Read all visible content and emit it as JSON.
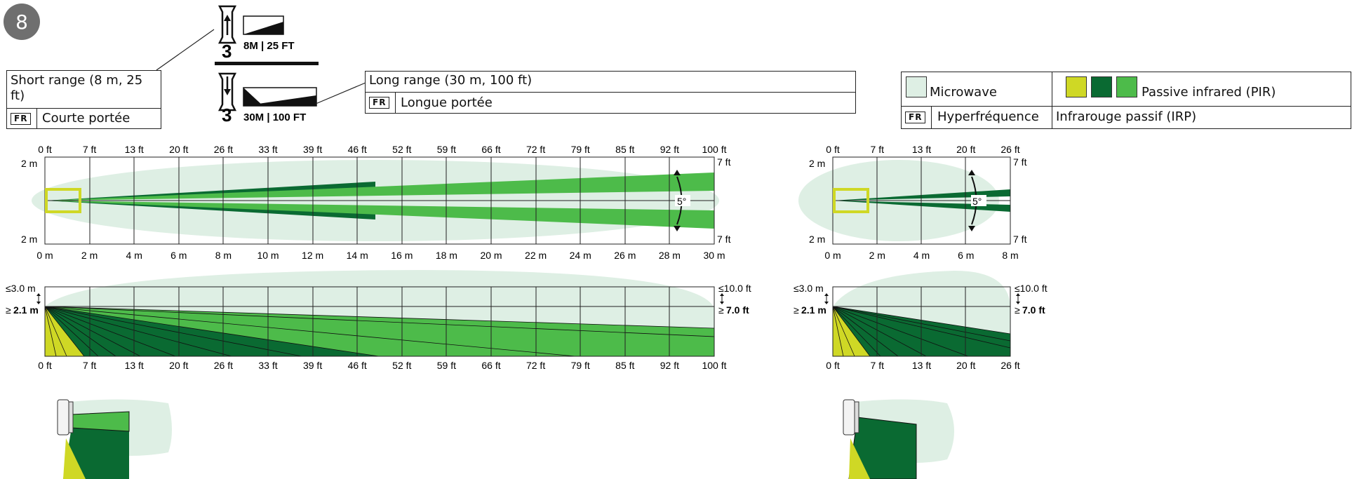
{
  "step_number": "8",
  "mode_short": {
    "step": "3",
    "distance": "8M | 25 FT"
  },
  "mode_long": {
    "step": "3",
    "distance": "30M | 100 FT"
  },
  "short_range_box": {
    "label": "Short range (8 m, 25 ft)",
    "fr_tag": "FR",
    "fr_text": "Courte portée"
  },
  "long_range_box": {
    "label": "Long range (30 m, 100 ft)",
    "fr_tag": "FR",
    "fr_text": "Longue portée"
  },
  "legend": {
    "microwave": "Microwave",
    "pir": "Passive infrared (PIR)",
    "fr_tag": "FR",
    "fr_microwave": "Hyperfréquence",
    "fr_pir": "Infrarouge passif (IRP)",
    "colors": {
      "microwave": "#deefe4",
      "pir_yellow": "#cfd825",
      "pir_dark": "#0a6a32",
      "pir_mid": "#4dbb4a"
    }
  },
  "long_top": {
    "ft_ticks": [
      "0 ft",
      "7 ft",
      "13 ft",
      "20 ft",
      "26 ft",
      "33 ft",
      "39 ft",
      "46 ft",
      "52 ft",
      "59 ft",
      "66 ft",
      "72 ft",
      "79 ft",
      "85 ft",
      "92 ft",
      "100 ft"
    ],
    "m_ticks": [
      "0 m",
      "2 m",
      "4 m",
      "6 m",
      "8 m",
      "10 m",
      "12 m",
      "14 m",
      "16 m",
      "18 m",
      "20 m",
      "22 m",
      "24 m",
      "26 m",
      "28 m",
      "30 m"
    ],
    "left_top": "2 m",
    "left_bottom": "2 m",
    "right_top": "7 ft",
    "right_bottom": "7 ft",
    "angle": "5°"
  },
  "long_side": {
    "left_max": "≤3.0 m",
    "left_min_prefix": "≥",
    "left_min": "2.1 m",
    "right_max": "≤10.0 ft",
    "right_min_prefix": "≥",
    "right_min": "7.0 ft",
    "ft_ticks": [
      "0 ft",
      "7 ft",
      "13 ft",
      "20 ft",
      "26 ft",
      "33 ft",
      "39 ft",
      "46 ft",
      "52 ft",
      "59 ft",
      "66 ft",
      "72 ft",
      "79 ft",
      "85 ft",
      "92 ft",
      "100 ft"
    ]
  },
  "short_top": {
    "ft_ticks": [
      "0 ft",
      "7 ft",
      "13 ft",
      "20 ft",
      "26 ft"
    ],
    "m_ticks": [
      "0 m",
      "2 m",
      "4 m",
      "6 m",
      "8 m"
    ],
    "left_top": "2 m",
    "left_bottom": "2 m",
    "right_top": "7 ft",
    "right_bottom": "7 ft",
    "angle": "5°"
  },
  "short_side": {
    "left_max": "≤3.0 m",
    "left_min_prefix": "≥",
    "left_min": "2.1 m",
    "right_max": "≤10.0 ft",
    "right_min_prefix": "≥",
    "right_min": "7.0 ft",
    "ft_ticks": [
      "0 ft",
      "7 ft",
      "13 ft",
      "20 ft",
      "26 ft"
    ]
  }
}
